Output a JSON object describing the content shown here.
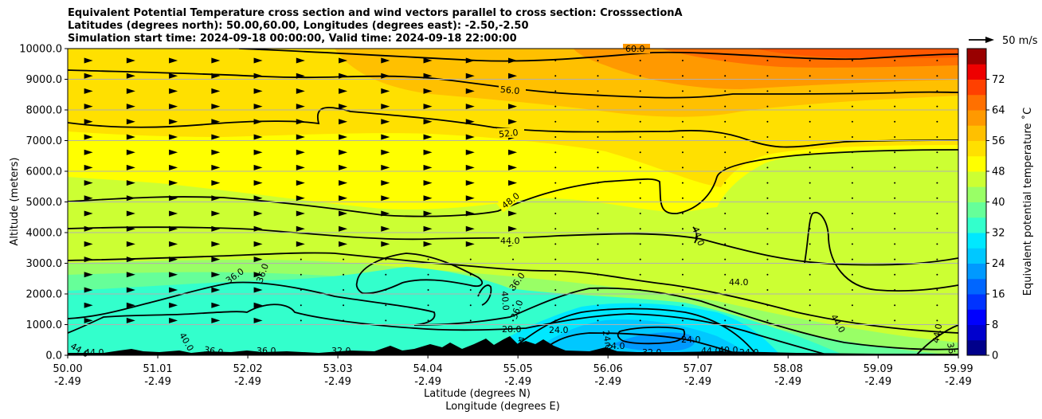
{
  "title_lines": [
    "Equivalent Potential Temperature cross section and wind vectors parallel to cross section: CrosssectionA",
    "Latitudes (degrees north): 50.00,60.00, Longitudes (degrees east): -2.50,-2.50",
    "Simulation start time: 2024-09-18 00:00:00, Valid time: 2024-09-18 22:00:00"
  ],
  "chart_data": {
    "type": "heatmap",
    "subtype": "filled contour cross section with contour lines, terrain and wind vectors",
    "xlabel_line1": "Latitude (degrees N)",
    "xlabel_line2": "Longitude (degrees E)",
    "ylabel": "Altitude (meters)",
    "x_ticks": [
      {
        "lat": "50.00",
        "lon": "-2.49"
      },
      {
        "lat": "51.01",
        "lon": "-2.49"
      },
      {
        "lat": "52.02",
        "lon": "-2.49"
      },
      {
        "lat": "53.03",
        "lon": "-2.49"
      },
      {
        "lat": "54.04",
        "lon": "-2.49"
      },
      {
        "lat": "55.05",
        "lon": "-2.49"
      },
      {
        "lat": "56.06",
        "lon": "-2.49"
      },
      {
        "lat": "57.07",
        "lon": "-2.49"
      },
      {
        "lat": "58.08",
        "lon": "-2.49"
      },
      {
        "lat": "59.09",
        "lon": "-2.49"
      },
      {
        "lat": "59.99",
        "lon": "-2.49"
      }
    ],
    "y_ticks": [
      "0.0",
      "1000.0",
      "2000.0",
      "3000.0",
      "4000.0",
      "5000.0",
      "6000.0",
      "7000.0",
      "8000.0",
      "9000.0",
      "10000.0"
    ],
    "ylim": [
      0,
      10000
    ],
    "xlim": [
      50.0,
      59.99
    ],
    "grid": "horizontal",
    "colorbar": {
      "label": "Equivalent potential temperature ˚C",
      "ticks": [
        "0",
        "8",
        "16",
        "24",
        "32",
        "40",
        "48",
        "56",
        "64",
        "72"
      ],
      "range": [
        0,
        80
      ],
      "colors": [
        "#00008b",
        "#0000cd",
        "#0000ff",
        "#0033ff",
        "#0066ff",
        "#0099ff",
        "#00c8ff",
        "#00e8ff",
        "#33ffcc",
        "#66ff99",
        "#99ff66",
        "#ccff33",
        "#ffff00",
        "#ffe000",
        "#ffc000",
        "#ff9900",
        "#ff7000",
        "#ff4000",
        "#ee0000",
        "#990000"
      ]
    },
    "wind_key": "50 m/s",
    "contour_labels": [
      "60.0",
      "56.0",
      "52.0",
      "48.0",
      "44.0",
      "44.0",
      "44.0",
      "44.0",
      "44.0",
      "44.0",
      "36.0",
      "36.0",
      "36.0",
      "36.0",
      "36.0",
      "36.0",
      "40.0",
      "40.0",
      "40.0",
      "40.0",
      "28.0",
      "24.0",
      "24.0",
      "24.0",
      "24.0",
      "32.0",
      "32.0",
      "44.0",
      "44.0",
      "36",
      "24.0"
    ]
  }
}
